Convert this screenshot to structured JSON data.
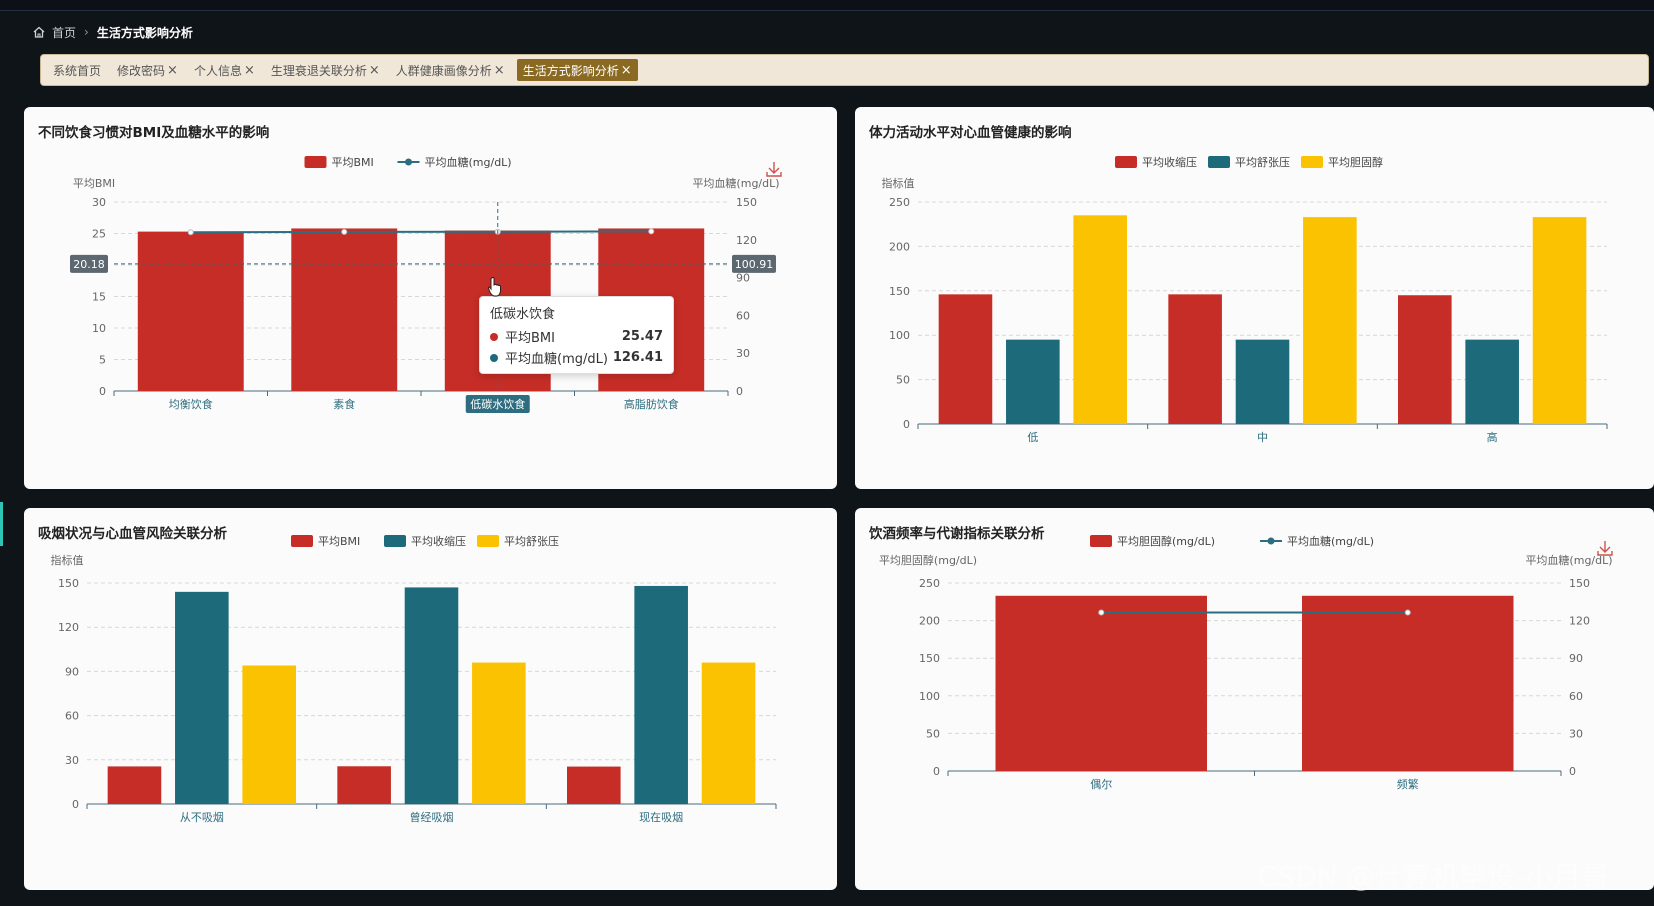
{
  "breadcrumb": {
    "home": "首页",
    "current": "生活方式影响分析"
  },
  "tabs": [
    {
      "label": "系统首页",
      "closable": false,
      "active": false
    },
    {
      "label": "修改密码",
      "closable": true,
      "active": false
    },
    {
      "label": "个人信息",
      "closable": true,
      "active": false
    },
    {
      "label": "生理衰退关联分析",
      "closable": true,
      "active": false
    },
    {
      "label": "人群健康画像分析",
      "closable": true,
      "active": false
    },
    {
      "label": "生活方式影响分析",
      "closable": true,
      "active": true
    }
  ],
  "colors": {
    "red": "#c62d26",
    "teal": "#1d6a7a",
    "yellow": "#fbc201",
    "line": "#2e6d7f"
  },
  "tooltip": {
    "title": "低碳水饮食",
    "rows": [
      {
        "name": "平均BMI",
        "value": "25.47",
        "color": "#c62d26"
      },
      {
        "name": "平均血糖(mg/dL)",
        "value": "126.41",
        "color": "#1d6a7a"
      }
    ]
  },
  "watermark": "CSDN @计算机毕设-小月哥",
  "chart_data": [
    {
      "id": "diet",
      "title": "不同饮食习惯对BMI及血糖水平的影响",
      "type": "bar",
      "categories": [
        "均衡饮食",
        "素食",
        "低碳水饮食",
        "高脂肪饮食"
      ],
      "highlight_category": "低碳水饮食",
      "series": [
        {
          "name": "平均BMI",
          "type": "bar",
          "axis": "left",
          "color": "#c62d26",
          "values": [
            25.3,
            25.8,
            25.47,
            25.8
          ]
        },
        {
          "name": "平均血糖(mg/dL)",
          "type": "line",
          "axis": "right",
          "color": "#2e6d7f",
          "values": [
            126.0,
            126.3,
            126.41,
            126.7
          ]
        }
      ],
      "left_axis": {
        "name": "平均BMI",
        "range": [
          0,
          30
        ],
        "ticks": [
          0,
          5,
          10,
          15,
          20,
          25,
          30
        ]
      },
      "right_axis": {
        "name": "平均血糖(mg/dL)",
        "range": [
          0,
          150
        ],
        "ticks": [
          0,
          30,
          60,
          90,
          120,
          150
        ]
      },
      "crosshair": {
        "left": "20.18",
        "right": "100.91"
      },
      "download": true
    },
    {
      "id": "activity",
      "title": "体力活动水平对心血管健康的影响",
      "type": "bar",
      "categories": [
        "低",
        "中",
        "高"
      ],
      "series": [
        {
          "name": "平均收缩压",
          "color": "#c62d26",
          "values": [
            146,
            146,
            145
          ]
        },
        {
          "name": "平均舒张压",
          "color": "#1d6a7a",
          "values": [
            95,
            95,
            95
          ]
        },
        {
          "name": "平均胆固醇",
          "color": "#fbc201",
          "values": [
            235,
            233,
            233
          ]
        }
      ],
      "left_axis": {
        "name": "指标值",
        "range": [
          0,
          250
        ],
        "ticks": [
          0,
          50,
          100,
          150,
          200,
          250
        ]
      },
      "download": false
    },
    {
      "id": "smoking",
      "title": "吸烟状况与心血管风险关联分析",
      "type": "bar",
      "categories": [
        "从不吸烟",
        "曾经吸烟",
        "现在吸烟"
      ],
      "series": [
        {
          "name": "平均BMI",
          "color": "#c62d26",
          "values": [
            25.5,
            25.6,
            25.4
          ]
        },
        {
          "name": "平均收缩压",
          "color": "#1d6a7a",
          "values": [
            144,
            147,
            148
          ]
        },
        {
          "name": "平均舒张压",
          "color": "#fbc201",
          "values": [
            94,
            96,
            96
          ]
        }
      ],
      "left_axis": {
        "name": "指标值",
        "range": [
          0,
          150
        ],
        "ticks": [
          0,
          30,
          60,
          90,
          120,
          150
        ]
      },
      "download": false
    },
    {
      "id": "alcohol",
      "title": "饮酒频率与代谢指标关联分析",
      "type": "bar",
      "categories": [
        "偶尔",
        "频繁"
      ],
      "series": [
        {
          "name": "平均胆固醇(mg/dL)",
          "type": "bar",
          "axis": "left",
          "color": "#c62d26",
          "values": [
            233,
            233
          ]
        },
        {
          "name": "平均血糖(mg/dL)",
          "type": "line",
          "axis": "right",
          "color": "#2e6d7f",
          "values": [
            126.5,
            126.5
          ]
        }
      ],
      "left_axis": {
        "name": "平均胆固醇(mg/dL)",
        "range": [
          0,
          250
        ],
        "ticks": [
          0,
          50,
          100,
          150,
          200,
          250
        ]
      },
      "right_axis": {
        "name": "平均血糖(mg/dL)",
        "range": [
          0,
          150
        ],
        "ticks": [
          0,
          30,
          60,
          90,
          120,
          150
        ]
      },
      "download": true
    }
  ]
}
